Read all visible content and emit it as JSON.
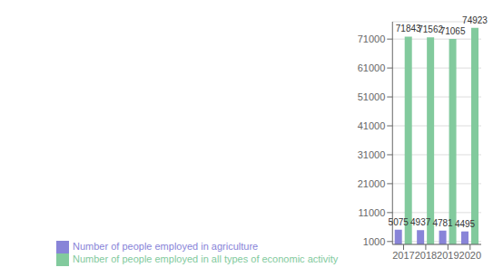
{
  "chart_data": {
    "type": "bar",
    "categories": [
      "2017",
      "2018",
      "2019",
      "2020"
    ],
    "series": [
      {
        "name": "Number of people employed in agriculture",
        "color": "#8884d8",
        "values": [
          5075,
          4937,
          4781,
          4495
        ]
      },
      {
        "name": "Number of people employed in all types of economic activity",
        "color": "#82ca9d",
        "values": [
          71843,
          71562,
          71065,
          74923
        ]
      }
    ],
    "ylim": [
      0,
      77000
    ],
    "yticks": [
      1000,
      11000,
      21000,
      31000,
      41000,
      51000,
      61000,
      71000
    ],
    "grid": true,
    "data_labels": true,
    "legend": "lower left"
  }
}
